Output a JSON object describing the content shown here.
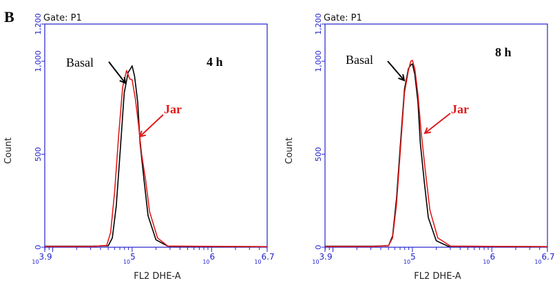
{
  "panel_letter": "B",
  "colors": {
    "axis": "#2222cc",
    "basal": "#000000",
    "jar": "#e01b1b"
  },
  "chart_data": [
    {
      "type": "line",
      "gate": "Gate: P1",
      "time_label": "4 h",
      "xlabel": "FL2 DHE-A",
      "ylabel": "Count",
      "x_scale": "log10",
      "xlim": [
        3.9,
        6.7
      ],
      "ylim": [
        0,
        1200
      ],
      "y_ticks": [
        "0",
        "500",
        "1,000",
        "1,200"
      ],
      "y_tick_values": [
        0,
        500,
        1000,
        1200
      ],
      "x_tick_labels": [
        {
          "exp": "3.9",
          "value": 3.9
        },
        {
          "exp": "5",
          "value": 5
        },
        {
          "exp": "6",
          "value": 6
        },
        {
          "exp": "6.7",
          "value": 6.7
        }
      ],
      "annotations": {
        "basal": "Basal",
        "jar": "Jar"
      },
      "series": [
        {
          "name": "Basal",
          "color": "#000000",
          "x": [
            3.9,
            4.5,
            4.7,
            4.75,
            4.8,
            4.85,
            4.9,
            4.95,
            4.98,
            5.0,
            5.03,
            5.07,
            5.1,
            5.15,
            5.2,
            5.3,
            5.45,
            6.7
          ],
          "y": [
            5,
            5,
            8,
            50,
            220,
            520,
            830,
            940,
            960,
            975,
            920,
            780,
            560,
            360,
            170,
            40,
            5,
            3
          ]
        },
        {
          "name": "Jar",
          "color": "#e01b1b",
          "x": [
            3.9,
            4.5,
            4.68,
            4.73,
            4.78,
            4.83,
            4.88,
            4.93,
            4.97,
            5.0,
            5.04,
            5.08,
            5.12,
            5.17,
            5.22,
            5.32,
            5.45,
            6.7
          ],
          "y": [
            4,
            4,
            10,
            80,
            300,
            600,
            860,
            950,
            905,
            900,
            800,
            660,
            500,
            360,
            190,
            50,
            6,
            3
          ]
        }
      ]
    },
    {
      "type": "line",
      "gate": "Gate: P1",
      "time_label": "8 h",
      "xlabel": "FL2 DHE-A",
      "ylabel": "Count",
      "x_scale": "log10",
      "xlim": [
        3.9,
        6.7
      ],
      "ylim": [
        0,
        1200
      ],
      "y_ticks": [
        "0",
        "500",
        "1,000",
        "1,200"
      ],
      "y_tick_values": [
        0,
        500,
        1000,
        1200
      ],
      "x_tick_labels": [
        {
          "exp": "3.9",
          "value": 3.9
        },
        {
          "exp": "5",
          "value": 5
        },
        {
          "exp": "6",
          "value": 6
        },
        {
          "exp": "6.7",
          "value": 6.7
        }
      ],
      "annotations": {
        "basal": "Basal",
        "jar": "Jar"
      },
      "series": [
        {
          "name": "Basal",
          "color": "#000000",
          "x": [
            3.9,
            4.5,
            4.7,
            4.75,
            4.8,
            4.85,
            4.9,
            4.95,
            4.98,
            5.0,
            5.03,
            5.07,
            5.1,
            5.15,
            5.2,
            5.3,
            5.45,
            6.7
          ],
          "y": [
            5,
            5,
            8,
            60,
            260,
            560,
            850,
            960,
            980,
            985,
            930,
            780,
            560,
            350,
            160,
            35,
            5,
            3
          ]
        },
        {
          "name": "Jar",
          "color": "#e01b1b",
          "x": [
            3.9,
            4.5,
            4.7,
            4.75,
            4.8,
            4.85,
            4.9,
            4.95,
            4.98,
            5.0,
            5.03,
            5.07,
            5.11,
            5.16,
            5.22,
            5.32,
            5.48,
            6.7
          ],
          "y": [
            4,
            4,
            8,
            50,
            230,
            530,
            830,
            950,
            1000,
            1005,
            960,
            820,
            620,
            420,
            200,
            50,
            6,
            3
          ]
        }
      ]
    }
  ]
}
